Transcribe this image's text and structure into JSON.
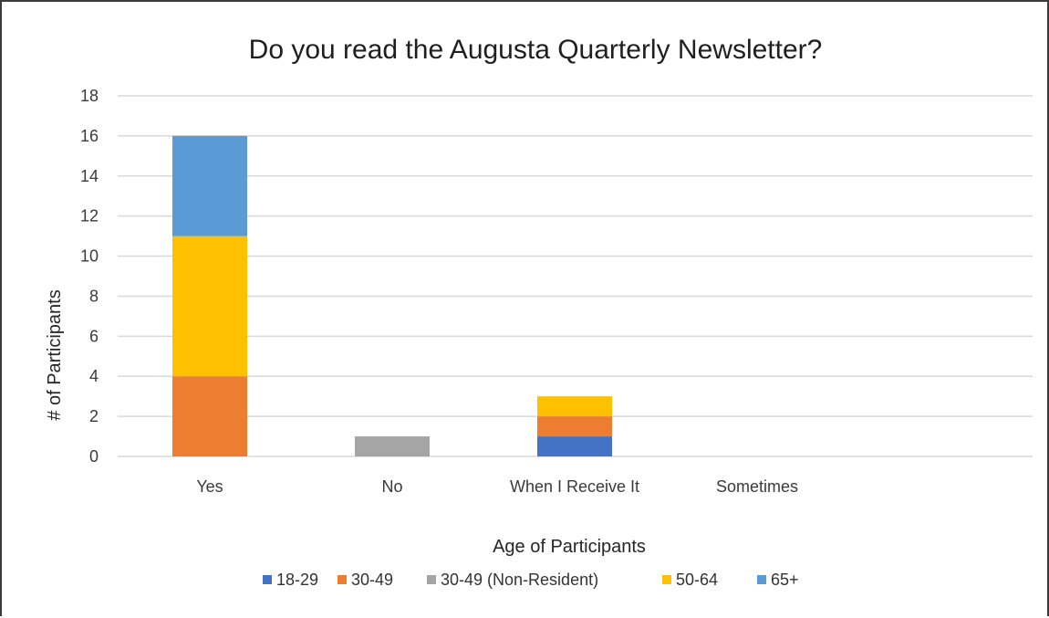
{
  "chart_data": {
    "type": "bar",
    "stacked": true,
    "title": "Do you read the Augusta Quarterly Newsletter?",
    "xlabel": "Age of Participants",
    "ylabel": "# of Participants",
    "ylim": [
      0,
      18
    ],
    "yticks": [
      0,
      2,
      4,
      6,
      8,
      10,
      12,
      14,
      16,
      18
    ],
    "grid": true,
    "legend_position": "bottom",
    "categories": [
      "Yes",
      "No",
      "When I Receive It",
      "Sometimes"
    ],
    "series": [
      {
        "name": "18-29",
        "color": "#4472C4",
        "values": [
          0,
          0,
          1,
          0
        ]
      },
      {
        "name": "30-49",
        "color": "#ED7D31",
        "values": [
          4,
          0,
          1,
          0
        ]
      },
      {
        "name": "30-49 (Non-Resident)",
        "color": "#A5A5A5",
        "values": [
          0,
          1,
          0,
          0
        ]
      },
      {
        "name": "50-64",
        "color": "#FFC000",
        "values": [
          7,
          0,
          1,
          0
        ]
      },
      {
        "name": "65+",
        "color": "#5B9BD5",
        "values": [
          5,
          0,
          0,
          0
        ]
      }
    ]
  }
}
